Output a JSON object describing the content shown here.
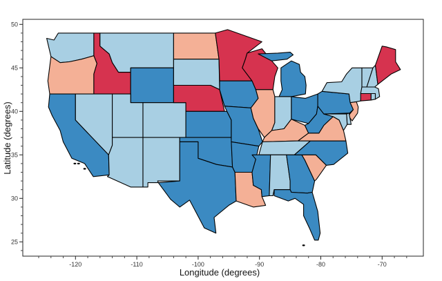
{
  "chart_data": {
    "type": "choropleth",
    "xlabel": "Longitude (degrees)",
    "ylabel": "Latitude (degrees)",
    "xlim": [
      -126,
      -65
    ],
    "ylim": [
      23.5,
      50.5
    ],
    "x_ticks": [
      -120,
      -110,
      -100,
      -90,
      -80,
      -70
    ],
    "y_ticks": [
      25,
      30,
      35,
      40,
      45,
      50
    ],
    "x_tick_labels": [
      "-120",
      "-110",
      "-100",
      "-90",
      "-80",
      "-70"
    ],
    "y_tick_labels": [
      "25",
      "30",
      "35",
      "40",
      "45",
      "50"
    ],
    "colors": {
      "red": "#d6334f",
      "salmon": "#f4b096",
      "light_blue": "#a8cfe3",
      "dark_blue": "#3b8ac2"
    },
    "states": [
      {
        "name": "Washington",
        "color": "light_blue"
      },
      {
        "name": "Oregon",
        "color": "salmon"
      },
      {
        "name": "California",
        "color": "dark_blue"
      },
      {
        "name": "Idaho",
        "color": "red"
      },
      {
        "name": "Nevada",
        "color": "light_blue"
      },
      {
        "name": "Montana",
        "color": "light_blue"
      },
      {
        "name": "Wyoming",
        "color": "dark_blue"
      },
      {
        "name": "Utah",
        "color": "light_blue"
      },
      {
        "name": "Colorado",
        "color": "light_blue"
      },
      {
        "name": "Arizona",
        "color": "light_blue"
      },
      {
        "name": "New Mexico",
        "color": "light_blue"
      },
      {
        "name": "North Dakota",
        "color": "salmon"
      },
      {
        "name": "South Dakota",
        "color": "light_blue"
      },
      {
        "name": "Nebraska",
        "color": "red"
      },
      {
        "name": "Kansas",
        "color": "dark_blue"
      },
      {
        "name": "Oklahoma",
        "color": "dark_blue"
      },
      {
        "name": "Texas",
        "color": "dark_blue"
      },
      {
        "name": "Minnesota",
        "color": "red"
      },
      {
        "name": "Iowa",
        "color": "dark_blue"
      },
      {
        "name": "Missouri",
        "color": "dark_blue"
      },
      {
        "name": "Arkansas",
        "color": "dark_blue"
      },
      {
        "name": "Louisiana",
        "color": "salmon"
      },
      {
        "name": "Wisconsin",
        "color": "red"
      },
      {
        "name": "Illinois",
        "color": "salmon"
      },
      {
        "name": "Michigan",
        "color": "dark_blue"
      },
      {
        "name": "Indiana",
        "color": "light_blue"
      },
      {
        "name": "Ohio",
        "color": "dark_blue"
      },
      {
        "name": "Kentucky",
        "color": "salmon"
      },
      {
        "name": "Tennessee",
        "color": "light_blue"
      },
      {
        "name": "Mississippi",
        "color": "dark_blue"
      },
      {
        "name": "Alabama",
        "color": "light_blue"
      },
      {
        "name": "Georgia",
        "color": "dark_blue"
      },
      {
        "name": "Florida",
        "color": "dark_blue"
      },
      {
        "name": "South Carolina",
        "color": "salmon"
      },
      {
        "name": "North Carolina",
        "color": "dark_blue"
      },
      {
        "name": "Virginia",
        "color": "salmon"
      },
      {
        "name": "West Virginia",
        "color": "dark_blue"
      },
      {
        "name": "Pennsylvania",
        "color": "dark_blue"
      },
      {
        "name": "New York",
        "color": "light_blue"
      },
      {
        "name": "New Jersey",
        "color": "salmon"
      },
      {
        "name": "Delaware",
        "color": "light_blue"
      },
      {
        "name": "Maryland",
        "color": "light_blue"
      },
      {
        "name": "Connecticut",
        "color": "red"
      },
      {
        "name": "Rhode Island",
        "color": "light_blue"
      },
      {
        "name": "Massachusetts",
        "color": "light_blue"
      },
      {
        "name": "Vermont",
        "color": "light_blue"
      },
      {
        "name": "New Hampshire",
        "color": "light_blue"
      },
      {
        "name": "Maine",
        "color": "red"
      }
    ]
  }
}
